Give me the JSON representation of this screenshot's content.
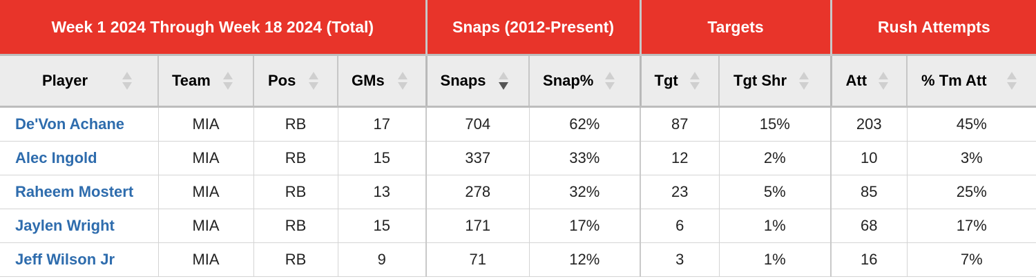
{
  "groups": {
    "period": "Week 1 2024 Through Week 18 2024 (Total)",
    "snaps": "Snaps (2012-Present)",
    "targets": "Targets",
    "rush": "Rush Attempts"
  },
  "columns": {
    "player": "Player",
    "team": "Team",
    "pos": "Pos",
    "gms": "GMs",
    "snaps": "Snaps",
    "snap_pct": "Snap%",
    "tgt": "Tgt",
    "tgt_shr": "Tgt Shr",
    "att": "Att",
    "tm_att": "% Tm Att"
  },
  "sort": {
    "column": "Snaps",
    "direction": "descending"
  },
  "colors": {
    "header_red": "#e8342a",
    "link_blue": "#2e6cad",
    "header_gray": "#ececec"
  },
  "rows": [
    {
      "player": "De'Von Achane",
      "team": "MIA",
      "pos": "RB",
      "gms": "17",
      "snaps": "704",
      "snap_pct": "62%",
      "tgt": "87",
      "tgt_shr": "15%",
      "att": "203",
      "tm_att": "45%"
    },
    {
      "player": "Alec Ingold",
      "team": "MIA",
      "pos": "RB",
      "gms": "15",
      "snaps": "337",
      "snap_pct": "33%",
      "tgt": "12",
      "tgt_shr": "2%",
      "att": "10",
      "tm_att": "3%"
    },
    {
      "player": "Raheem Mostert",
      "team": "MIA",
      "pos": "RB",
      "gms": "13",
      "snaps": "278",
      "snap_pct": "32%",
      "tgt": "23",
      "tgt_shr": "5%",
      "att": "85",
      "tm_att": "25%"
    },
    {
      "player": "Jaylen Wright",
      "team": "MIA",
      "pos": "RB",
      "gms": "15",
      "snaps": "171",
      "snap_pct": "17%",
      "tgt": "6",
      "tgt_shr": "1%",
      "att": "68",
      "tm_att": "17%"
    },
    {
      "player": "Jeff Wilson Jr",
      "team": "MIA",
      "pos": "RB",
      "gms": "9",
      "snaps": "71",
      "snap_pct": "12%",
      "tgt": "3",
      "tgt_shr": "1%",
      "att": "16",
      "tm_att": "7%"
    }
  ]
}
